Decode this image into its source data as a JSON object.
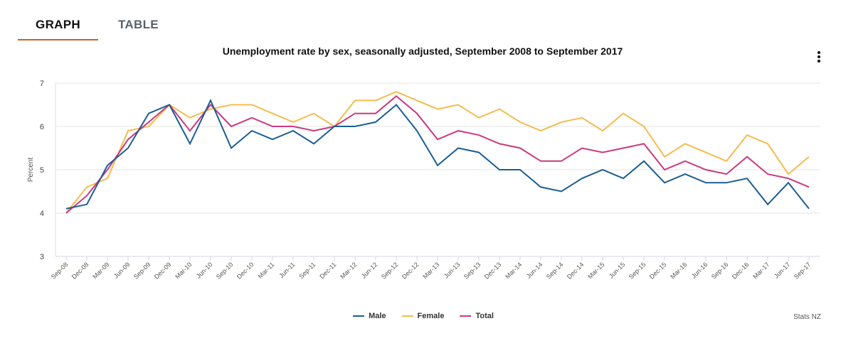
{
  "tabs": [
    {
      "label": "GRAPH",
      "active": true
    },
    {
      "label": "TABLE",
      "active": false
    }
  ],
  "menu_icon": "vertical-ellipsis-icon",
  "source": "Stats NZ",
  "colors": {
    "male": "#1b5e94",
    "female": "#f5bc4f",
    "total": "#c93a7f",
    "accent": "#c8641e"
  },
  "chart_data": {
    "type": "line",
    "title": "Unemployment rate by sex, seasonally adjusted, September 2008 to September 2017",
    "xlabel": "",
    "ylabel": "Percent",
    "ylim": [
      3,
      7
    ],
    "yticks": [
      3,
      4,
      5,
      6,
      7
    ],
    "grid": true,
    "legend_position": "bottom-center",
    "categories": [
      "Sep-08",
      "Dec-08",
      "Mar-09",
      "Jun-09",
      "Sep-09",
      "Dec-09",
      "Mar-10",
      "Jun-10",
      "Sep-10",
      "Dec-10",
      "Mar-11",
      "Jun-11",
      "Sep-11",
      "Dec-11",
      "Mar-12",
      "Jun-12",
      "Sep-12",
      "Dec-12",
      "Mar-13",
      "Jun-13",
      "Sep-13",
      "Dec-13",
      "Mar-14",
      "Jun-14",
      "Sep-14",
      "Dec-14",
      "Mar-15",
      "Jun-15",
      "Sep-15",
      "Dec-15",
      "Mar-16",
      "Jun-16",
      "Sep-16",
      "Dec-16",
      "Mar-17",
      "Jun-17",
      "Sep-17"
    ],
    "series": [
      {
        "name": "Male",
        "color": "#1b5e94",
        "values": [
          4.1,
          4.2,
          5.1,
          5.5,
          6.3,
          6.5,
          5.6,
          6.6,
          5.5,
          5.9,
          5.7,
          5.9,
          5.6,
          6.0,
          6.0,
          6.1,
          6.5,
          5.9,
          5.1,
          5.5,
          5.4,
          5.0,
          5.0,
          4.6,
          4.5,
          4.8,
          5.0,
          4.8,
          5.2,
          4.7,
          4.9,
          4.7,
          4.7,
          4.8,
          4.2,
          4.7,
          4.1
        ]
      },
      {
        "name": "Female",
        "color": "#f5bc4f",
        "values": [
          4.0,
          4.6,
          4.8,
          5.9,
          6.0,
          6.5,
          6.2,
          6.4,
          6.5,
          6.5,
          6.3,
          6.1,
          6.3,
          6.0,
          6.6,
          6.6,
          6.8,
          6.6,
          6.4,
          6.5,
          6.2,
          6.4,
          6.1,
          5.9,
          6.1,
          6.2,
          5.9,
          6.3,
          6.0,
          5.3,
          5.6,
          5.4,
          5.2,
          5.8,
          5.6,
          4.9,
          5.3
        ]
      },
      {
        "name": "Total",
        "color": "#c93a7f",
        "values": [
          4.0,
          4.4,
          5.0,
          5.7,
          6.1,
          6.5,
          5.9,
          6.5,
          6.0,
          6.2,
          6.0,
          6.0,
          5.9,
          6.0,
          6.3,
          6.3,
          6.7,
          6.3,
          5.7,
          5.9,
          5.8,
          5.6,
          5.5,
          5.2,
          5.2,
          5.5,
          5.4,
          5.5,
          5.6,
          5.0,
          5.2,
          5.0,
          4.9,
          5.3,
          4.9,
          4.8,
          4.6
        ]
      }
    ]
  }
}
